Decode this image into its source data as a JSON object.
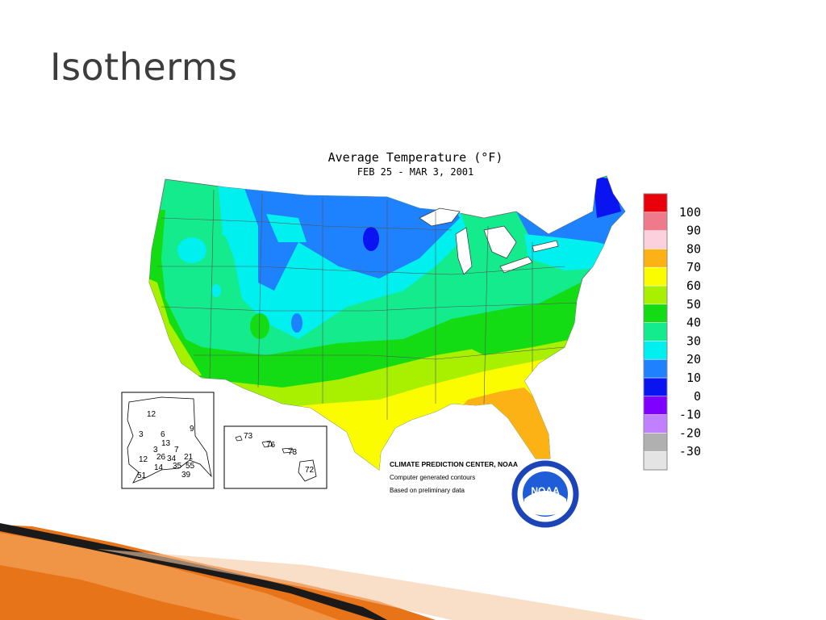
{
  "slide": {
    "title": "Isotherms"
  },
  "map": {
    "title": "Average Temperature (°F)",
    "date_range": "FEB 25 - MAR 3, 2001",
    "unit": "°F"
  },
  "legend": {
    "bins": [
      {
        "label": "100",
        "color": "#e8000b"
      },
      {
        "label": "90",
        "color": "#ee7a8c"
      },
      {
        "label": "80",
        "color": "#fcd0dc"
      },
      {
        "label": "70",
        "color": "#fcb214"
      },
      {
        "label": "60",
        "color": "#fcfc00"
      },
      {
        "label": "50",
        "color": "#a8f000"
      },
      {
        "label": "40",
        "color": "#14dc14"
      },
      {
        "label": "30",
        "color": "#14eb8c"
      },
      {
        "label": "20",
        "color": "#00f0f0"
      },
      {
        "label": "10",
        "color": "#1e82ff"
      },
      {
        "label": "0",
        "color": "#0a14f0"
      },
      {
        "label": "-10",
        "color": "#8000ff"
      },
      {
        "label": "-20",
        "color": "#c080ff"
      },
      {
        "label": "-30",
        "color": "#b0b0b0"
      },
      {
        "label": "",
        "color": "#e4e4e4"
      }
    ]
  },
  "credits": {
    "line1": "CLIMATE PREDICTION CENTER, NOAA",
    "line2": "Computer generated contours",
    "line3": "Based on preliminary data",
    "logo_text": "NOAA"
  },
  "alaska_values": [
    "12",
    "9",
    "3",
    "6",
    "13",
    "3",
    "7",
    "26",
    "34",
    "21",
    "12",
    "14",
    "35",
    "55",
    "51",
    "39"
  ],
  "hawaii_values": [
    "73",
    "76",
    "73",
    "72"
  ],
  "colors": {
    "title": "#3d3d3d",
    "accent_orange": "#e8741a"
  }
}
